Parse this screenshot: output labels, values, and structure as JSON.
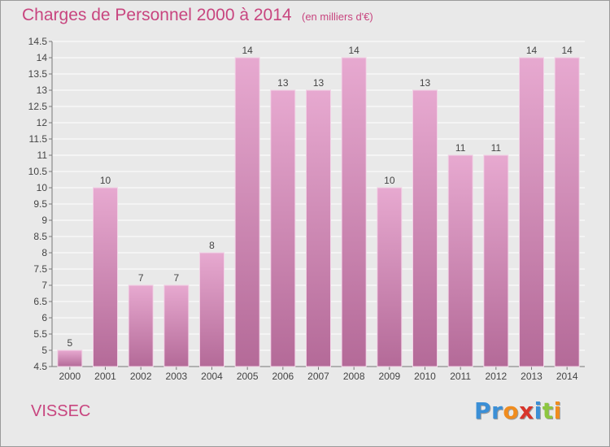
{
  "header": {
    "title": "Charges de Personnel 2000 à 2014",
    "unit": "(en milliers d'€)"
  },
  "footer": {
    "place": "VISSEC",
    "logo_letters": [
      "P",
      "r",
      "o",
      "x",
      "i",
      "t",
      "i"
    ],
    "logo_colors": [
      "#3b8fd6",
      "#3b8fd6",
      "#f08c1e",
      "#d8352b",
      "#3b8fd6",
      "#8dc63f",
      "#f08c1e"
    ]
  },
  "chart_data": {
    "type": "bar",
    "categories": [
      "2000",
      "2001",
      "2002",
      "2003",
      "2004",
      "2005",
      "2006",
      "2007",
      "2008",
      "2009",
      "2010",
      "2011",
      "2012",
      "2013",
      "2014"
    ],
    "values": [
      5,
      10,
      7,
      7,
      8,
      14,
      13,
      13,
      14,
      10,
      13,
      11,
      11,
      14,
      14
    ],
    "value_labels": [
      "5",
      "10",
      "7",
      "7",
      "8",
      "14",
      "13",
      "13",
      "14",
      "10",
      "13",
      "11",
      "11",
      "14",
      "14"
    ],
    "ylim": [
      4.5,
      14.5
    ],
    "yticks": [
      "4.5",
      "5",
      "5.5",
      "6",
      "6.5",
      "7",
      "7.5",
      "8",
      "8.5",
      "9",
      "9.5",
      "10",
      "10.5",
      "11",
      "11.5",
      "12",
      "12.5",
      "13",
      "13.5",
      "14",
      "14.5"
    ],
    "grid": true,
    "colors": {
      "bar_top": "#e7a9d0",
      "bar_bottom": "#b46a98",
      "grid": "#ffffff",
      "text": "#444444"
    }
  }
}
